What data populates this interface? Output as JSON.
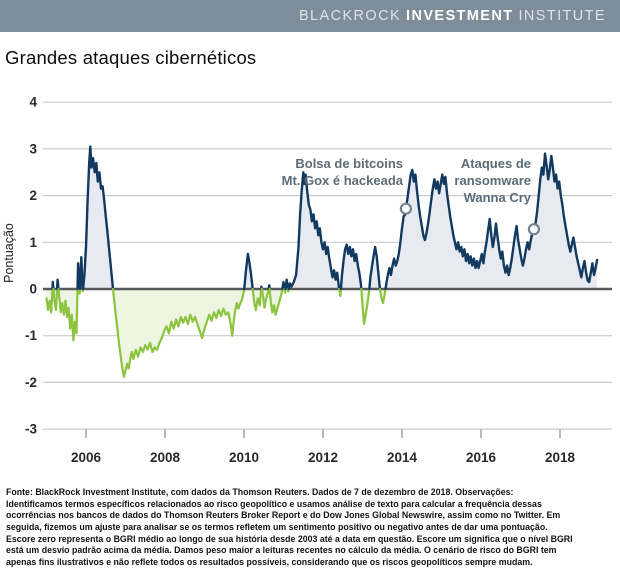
{
  "header": {
    "brand_part1": "BLACKROCK",
    "brand_part2": "INVESTMENT",
    "brand_part3": "INSTITUTE"
  },
  "title": "Grandes ataques cibernéticos",
  "chart_data": {
    "type": "area",
    "title": "Grandes ataques cibernéticos",
    "xlabel": "",
    "ylabel": "Pontuação",
    "ylim": [
      -3,
      4
    ],
    "xlim": [
      2005.0,
      2019.3
    ],
    "yticks": [
      4,
      3,
      2,
      1,
      0,
      -1,
      -2,
      -3
    ],
    "xticks": [
      2006,
      2008,
      2010,
      2012,
      2014,
      2016,
      2018
    ],
    "grid": true,
    "legend_position": "none",
    "colors": {
      "positive_line": "#12395f",
      "positive_fill": "#e7ebf1",
      "negative_line": "#8cc440",
      "negative_fill": "#eef5e1",
      "zero_line": "#57585a",
      "grid": "#c9cccd",
      "tick": "#9a9a9a",
      "marker_stroke": "#76828e",
      "header_bar": "#7d8d99",
      "annotation_text": "#5d6b77"
    },
    "series": [
      {
        "name": "BGRI — grandes ataques cibernéticos",
        "x": [
          2005.0,
          2005.04,
          2005.08,
          2005.12,
          2005.16,
          2005.2,
          2005.24,
          2005.28,
          2005.32,
          2005.36,
          2005.4,
          2005.44,
          2005.48,
          2005.52,
          2005.56,
          2005.6,
          2005.64,
          2005.68,
          2005.72,
          2005.76,
          2005.8,
          2005.84,
          2005.88,
          2005.92,
          2005.96,
          2006.0,
          2006.04,
          2006.08,
          2006.11,
          2006.14,
          2006.18,
          2006.22,
          2006.26,
          2006.3,
          2006.34,
          2006.38,
          2006.42,
          2006.46,
          2006.5,
          2006.54,
          2006.58,
          2006.62,
          2006.66,
          2006.7,
          2006.76,
          2006.84,
          2006.88,
          2006.92,
          2006.96,
          2007.0,
          2007.04,
          2007.08,
          2007.12,
          2007.16,
          2007.2,
          2007.26,
          2007.32,
          2007.38,
          2007.44,
          2007.5,
          2007.56,
          2007.62,
          2007.68,
          2007.74,
          2007.8,
          2007.86,
          2007.92,
          2007.98,
          2008.04,
          2008.1,
          2008.16,
          2008.22,
          2008.28,
          2008.34,
          2008.4,
          2008.46,
          2008.52,
          2008.58,
          2008.64,
          2008.7,
          2008.76,
          2008.82,
          2008.88,
          2008.94,
          2009.0,
          2009.06,
          2009.12,
          2009.18,
          2009.24,
          2009.3,
          2009.36,
          2009.42,
          2009.48,
          2009.54,
          2009.6,
          2009.66,
          2009.7,
          2009.74,
          2009.78,
          2009.82,
          2009.86,
          2009.9,
          2009.95,
          2010.0,
          2010.05,
          2010.1,
          2010.14,
          2010.18,
          2010.22,
          2010.26,
          2010.3,
          2010.35,
          2010.4,
          2010.44,
          2010.48,
          2010.52,
          2010.56,
          2010.6,
          2010.64,
          2010.68,
          2010.72,
          2010.76,
          2010.8,
          2010.85,
          2010.9,
          2010.95,
          2011.0,
          2011.04,
          2011.08,
          2011.12,
          2011.16,
          2011.2,
          2011.26,
          2011.32,
          2011.38,
          2011.42,
          2011.46,
          2011.5,
          2011.53,
          2011.56,
          2011.6,
          2011.64,
          2011.68,
          2011.72,
          2011.76,
          2011.8,
          2011.84,
          2011.88,
          2011.92,
          2011.96,
          2012.0,
          2012.04,
          2012.08,
          2012.12,
          2012.16,
          2012.2,
          2012.24,
          2012.28,
          2012.32,
          2012.36,
          2012.4,
          2012.44,
          2012.48,
          2012.52,
          2012.56,
          2012.6,
          2012.64,
          2012.68,
          2012.72,
          2012.76,
          2012.8,
          2012.84,
          2012.88,
          2012.92,
          2012.96,
          2013.0,
          2013.04,
          2013.08,
          2013.12,
          2013.16,
          2013.2,
          2013.26,
          2013.32,
          2013.36,
          2013.4,
          2013.44,
          2013.48,
          2013.52,
          2013.56,
          2013.6,
          2013.64,
          2013.68,
          2013.72,
          2013.76,
          2013.8,
          2013.84,
          2013.88,
          2013.92,
          2013.96,
          2014.0,
          2014.04,
          2014.08,
          2014.1,
          2014.14,
          2014.18,
          2014.22,
          2014.26,
          2014.3,
          2014.34,
          2014.38,
          2014.42,
          2014.46,
          2014.5,
          2014.54,
          2014.58,
          2014.62,
          2014.66,
          2014.7,
          2014.74,
          2014.78,
          2014.82,
          2014.86,
          2014.9,
          2014.94,
          2014.98,
          2015.02,
          2015.06,
          2015.1,
          2015.14,
          2015.18,
          2015.22,
          2015.26,
          2015.3,
          2015.34,
          2015.38,
          2015.42,
          2015.46,
          2015.5,
          2015.54,
          2015.58,
          2015.62,
          2015.66,
          2015.7,
          2015.74,
          2015.78,
          2015.82,
          2015.86,
          2015.9,
          2015.94,
          2015.98,
          2016.02,
          2016.06,
          2016.1,
          2016.14,
          2016.18,
          2016.22,
          2016.26,
          2016.3,
          2016.34,
          2016.38,
          2016.42,
          2016.46,
          2016.5,
          2016.54,
          2016.58,
          2016.62,
          2016.66,
          2016.7,
          2016.74,
          2016.78,
          2016.82,
          2016.86,
          2016.9,
          2016.94,
          2016.98,
          2017.02,
          2017.06,
          2017.1,
          2017.14,
          2017.18,
          2017.22,
          2017.26,
          2017.3,
          2017.34,
          2017.38,
          2017.42,
          2017.46,
          2017.5,
          2017.54,
          2017.58,
          2017.62,
          2017.66,
          2017.7,
          2017.74,
          2017.78,
          2017.82,
          2017.86,
          2017.9,
          2017.94,
          2017.98,
          2018.02,
          2018.06,
          2018.1,
          2018.14,
          2018.18,
          2018.22,
          2018.26,
          2018.3,
          2018.34,
          2018.38,
          2018.42,
          2018.46,
          2018.5,
          2018.54,
          2018.58,
          2018.62,
          2018.66,
          2018.7,
          2018.74,
          2018.78,
          2018.82,
          2018.86,
          2018.9,
          2018.94
        ],
        "y": [
          -0.2,
          -0.45,
          -0.25,
          -0.5,
          0.15,
          -0.25,
          -0.45,
          0.2,
          -0.15,
          -0.5,
          -0.3,
          -0.55,
          -0.25,
          -0.6,
          -0.4,
          -0.85,
          -0.55,
          -1.1,
          -0.7,
          -0.95,
          0.55,
          -0.1,
          0.68,
          -0.05,
          0.3,
          0.9,
          1.9,
          2.7,
          3.05,
          2.6,
          2.8,
          2.5,
          2.7,
          2.3,
          2.5,
          2.15,
          2.2,
          1.9,
          1.55,
          1.25,
          0.9,
          0.55,
          0.2,
          -0.15,
          -0.6,
          -1.2,
          -1.45,
          -1.7,
          -1.88,
          -1.75,
          -1.6,
          -1.7,
          -1.5,
          -1.35,
          -1.5,
          -1.3,
          -1.45,
          -1.25,
          -1.35,
          -1.2,
          -1.3,
          -1.15,
          -1.35,
          -1.25,
          -1.3,
          -1.15,
          -1.05,
          -0.9,
          -0.8,
          -0.95,
          -0.7,
          -0.85,
          -0.65,
          -0.8,
          -0.6,
          -0.72,
          -0.6,
          -0.75,
          -0.55,
          -0.7,
          -0.6,
          -0.75,
          -0.9,
          -1.05,
          -0.85,
          -0.7,
          -0.55,
          -0.68,
          -0.5,
          -0.62,
          -0.45,
          -0.58,
          -0.42,
          -0.55,
          -0.5,
          -0.75,
          -1.0,
          -0.7,
          -0.45,
          -0.3,
          -0.42,
          -0.32,
          -0.22,
          -0.05,
          0.4,
          0.75,
          0.55,
          0.3,
          0.0,
          -0.3,
          -0.45,
          -0.2,
          -0.35,
          0.05,
          -0.15,
          -0.4,
          -0.2,
          -0.1,
          0.08,
          -0.3,
          -0.5,
          -0.35,
          -0.55,
          -0.4,
          -0.25,
          -0.1,
          0.15,
          -0.08,
          0.2,
          -0.05,
          0.12,
          0.05,
          0.15,
          0.3,
          0.9,
          1.6,
          2.1,
          2.5,
          2.25,
          2.45,
          2.1,
          1.8,
          1.7,
          1.45,
          1.6,
          1.3,
          1.45,
          1.15,
          1.3,
          1.0,
          0.85,
          1.0,
          0.75,
          0.9,
          0.65,
          0.45,
          0.25,
          0.4,
          0.2,
          0.35,
          0.05,
          -0.15,
          0.3,
          0.6,
          0.85,
          0.95,
          0.75,
          0.9,
          0.7,
          0.85,
          0.6,
          0.75,
          0.5,
          0.35,
          0.1,
          -0.35,
          -0.75,
          -0.55,
          -0.35,
          -0.1,
          0.25,
          0.6,
          0.9,
          0.7,
          0.35,
          0.0,
          -0.2,
          -0.3,
          -0.12,
          0.1,
          0.3,
          0.45,
          0.3,
          0.5,
          0.65,
          0.5,
          0.6,
          0.75,
          1.0,
          1.3,
          1.55,
          1.6,
          1.72,
          1.95,
          2.2,
          2.45,
          2.55,
          2.3,
          2.45,
          2.1,
          1.8,
          1.55,
          1.35,
          1.15,
          1.05,
          1.2,
          1.4,
          1.65,
          1.9,
          2.15,
          2.35,
          2.15,
          2.3,
          2.05,
          2.25,
          2.45,
          2.25,
          2.4,
          2.05,
          1.8,
          1.55,
          1.35,
          1.15,
          1.0,
          0.85,
          1.0,
          0.8,
          0.9,
          0.7,
          0.85,
          0.6,
          0.75,
          0.55,
          0.7,
          0.5,
          0.65,
          0.45,
          0.6,
          0.45,
          0.6,
          0.75,
          0.55,
          0.8,
          1.0,
          1.25,
          1.5,
          1.15,
          0.9,
          1.1,
          1.4,
          1.1,
          0.85,
          0.65,
          0.8,
          0.5,
          0.35,
          0.5,
          0.3,
          0.45,
          0.65,
          0.9,
          1.15,
          1.35,
          1.05,
          0.85,
          0.65,
          0.5,
          0.65,
          0.85,
          1.0,
          0.85,
          1.05,
          1.2,
          1.28,
          1.4,
          1.65,
          2.0,
          2.35,
          2.6,
          2.45,
          2.9,
          2.65,
          2.35,
          2.55,
          2.85,
          2.6,
          2.3,
          2.45,
          2.15,
          2.3,
          2.0,
          1.8,
          1.55,
          1.35,
          1.15,
          0.95,
          0.8,
          0.95,
          1.1,
          0.9,
          0.7,
          0.55,
          0.4,
          0.25,
          0.45,
          0.6,
          0.35,
          0.18,
          0.15,
          0.35,
          0.55,
          0.3,
          0.45,
          0.62
        ]
      }
    ],
    "annotations": [
      {
        "lines": [
          "Bolsa de bitcoins",
          "Mt. Gox é hackeada"
        ],
        "x": 2014.1,
        "y": 1.72
      },
      {
        "lines": [
          "Ataques de",
          "ransomware",
          "Wanna Cry"
        ],
        "x": 2017.34,
        "y": 1.28
      }
    ]
  },
  "footer": {
    "lines": [
      "Fonte: BlackRock Investment Institute, com dados da Thomson Reuters. Dados de 7 de dezembro de 2018. Observações:",
      "Identificamos termos específicos relacionados ao risco geopolítico e usamos análise de texto para calcular a frequência dessas",
      "ocorrências nos bancos de dados do Thomson Reuters Broker Report e do Dow Jones Global Newswire, assim como no Twitter. Em",
      "seguida, fizemos um ajuste para analisar se os termos refletem um sentimento positivo ou negativo antes de dar uma pontuação.",
      "Escore zero representa o BGRI médio ao longo de sua história desde 2003 até a data em questão. Escore um significa que o nível BGRI",
      "está um desvio padrão acima da média. Damos peso maior a leituras recentes no cálculo da média. O cenário de risco do BGRI tem",
      "apenas fins ilustrativos e não reflete todos os resultados possíveis, considerando que os riscos geopolíticos sempre mudam."
    ]
  }
}
